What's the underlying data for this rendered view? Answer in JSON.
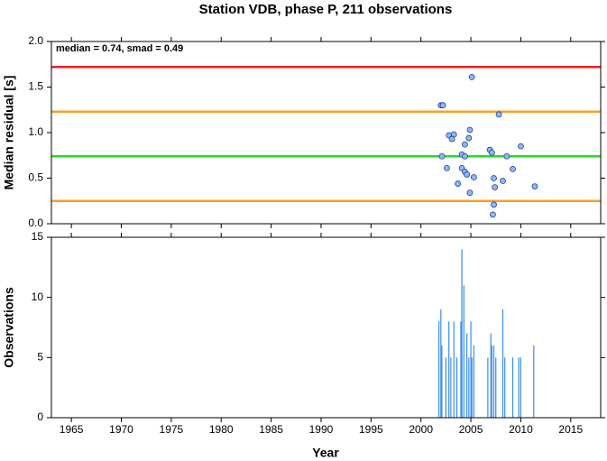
{
  "chart_data": [
    {
      "type": "scatter",
      "title": "Station VDB, phase P, 211 observations",
      "ylabel": "Median residual [s]",
      "annotation": "median = 0.74, smad = 0.49",
      "xlim": [
        1963,
        2018
      ],
      "ylim": [
        0,
        2
      ],
      "yticks": [
        {
          "value": 0,
          "label": "0.0"
        },
        0.5,
        {
          "value": 1,
          "label": "1.0"
        },
        1.5,
        {
          "value": 2,
          "label": "2.0"
        }
      ],
      "color": "#8fb8f0",
      "edgecolor": "#2040a0",
      "lines": [
        {
          "value": 1.72,
          "color": "#ee2222"
        },
        {
          "value": 1.23,
          "color": "#ffa020"
        },
        {
          "value": 0.74,
          "color": "#22dd22"
        },
        {
          "value": 0.25,
          "color": "#ffa020"
        }
      ],
      "x": [
        2002.0,
        2002.2,
        2005.1,
        2007.8,
        2002.8,
        2003.3,
        2003.1,
        2004.9,
        2004.8,
        2004.4,
        2006.9,
        2007.1,
        2010.0,
        2002.1,
        2004.1,
        2004.4,
        2008.6,
        2002.6,
        2004.1,
        2004.4,
        2004.6,
        2005.3,
        2009.2,
        2003.7,
        2007.3,
        2008.2,
        2007.4,
        2011.4,
        2004.9,
        2007.3,
        2007.2
      ],
      "values": [
        1.3,
        1.3,
        1.61,
        1.2,
        0.97,
        0.98,
        0.93,
        1.03,
        0.94,
        0.87,
        0.81,
        0.78,
        0.85,
        0.74,
        0.76,
        0.74,
        0.74,
        0.61,
        0.61,
        0.57,
        0.54,
        0.51,
        0.6,
        0.44,
        0.5,
        0.47,
        0.4,
        0.41,
        0.34,
        0.21,
        0.1
      ]
    },
    {
      "type": "bar",
      "ylabel": "Observations",
      "xlabel": "Year",
      "xlim": [
        1963,
        2018
      ],
      "ylim": [
        0,
        15
      ],
      "xticks": [
        1965,
        1970,
        1975,
        1980,
        1985,
        1990,
        1995,
        2000,
        2005,
        2010,
        2015
      ],
      "yticks": [
        0,
        5,
        10,
        15
      ],
      "color": "#3a8ee6",
      "x": [
        2001.8,
        2002.0,
        2002.1,
        2002.5,
        2002.8,
        2003.0,
        2003.3,
        2003.6,
        2004.0,
        2004.1,
        2004.3,
        2004.6,
        2004.8,
        2005.0,
        2005.1,
        2005.3,
        2006.7,
        2007.0,
        2007.1,
        2007.3,
        2007.5,
        2008.2,
        2008.4,
        2009.2,
        2009.8,
        2010.0,
        2011.3
      ],
      "values": [
        8,
        9,
        6,
        5,
        8,
        5,
        8,
        5,
        8,
        14,
        11,
        7,
        5,
        8,
        5,
        6,
        5,
        7,
        6,
        6,
        5,
        9,
        5,
        5,
        5,
        5,
        6
      ]
    }
  ]
}
